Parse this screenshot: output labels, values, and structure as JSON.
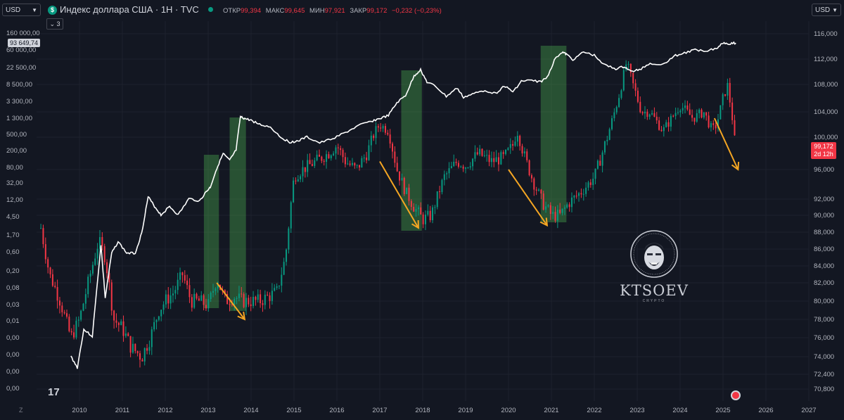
{
  "toolbar": {
    "left_currency": "USD",
    "right_currency": "USD",
    "title": "Индекс доллара США · 1H · TVC",
    "symbol_letter": "$",
    "ohlc": [
      {
        "label": "ОТКР",
        "value": "99,394"
      },
      {
        "label": "МАКС",
        "value": "99,645"
      },
      {
        "label": "МИН",
        "value": "97,921"
      },
      {
        "label": "ЗАКР",
        "value": "99,172"
      },
      {
        "label": "",
        "value": "−0,232 (−0,23%)"
      }
    ],
    "indicators_count": "3"
  },
  "left_price_tag": "93 649,74",
  "price_badge": {
    "price": "99,172",
    "countdown": "2d 12h",
    "color": "#f23645"
  },
  "watermark": {
    "text": "KTSOEV",
    "sub": "CRYPTO"
  },
  "tv_logo": "17",
  "zoom_button": "Z",
  "chart_data": {
    "type": "line",
    "x_ticks": [
      "2010",
      "2011",
      "2012",
      "2013",
      "2014",
      "2015",
      "2016",
      "2017",
      "2018",
      "2019",
      "2020",
      "2021",
      "2022",
      "2023",
      "2024",
      "2025",
      "2026",
      "2027"
    ],
    "left_axis_ticks": [
      "160 000,00",
      "60 000,00",
      "22 500,00",
      "8 500,00",
      "3 300,00",
      "1 300,00",
      "500,00",
      "200,00",
      "80,00",
      "32,00",
      "12,00",
      "4,50",
      "1,70",
      "0,60",
      "0,20",
      "0,08",
      "0,03",
      "0,01",
      "0,00",
      "0,00",
      "0,00",
      "0,00"
    ],
    "right_axis_ticks": [
      "116,000",
      "112,000",
      "108,000",
      "104,000",
      "100,000",
      "96,000",
      "92,000",
      "90,000",
      "88,000",
      "86,000",
      "84,000",
      "82,000",
      "80,000",
      "78,000",
      "76,000",
      "74,000",
      "72,400",
      "70,800"
    ],
    "scale_left": "log",
    "series": [
      {
        "color": "#ffffff",
        "style": "line",
        "x": [
          2009.8,
          2009.95,
          2010.1,
          2010.3,
          2010.5,
          2010.6,
          2010.75,
          2010.9,
          2011.1,
          2011.3,
          2011.45,
          2011.6,
          2011.75,
          2011.9,
          2012.1,
          2012.3,
          2012.55,
          2012.8,
          2012.95,
          2013.05,
          2013.2,
          2013.35,
          2013.5,
          2013.65,
          2013.75,
          2013.85,
          2014.0,
          2014.2,
          2014.45,
          2014.7,
          2014.9,
          2015.1,
          2015.3,
          2015.6,
          2015.9,
          2016.2,
          2016.5,
          2016.8,
          2017.0,
          2017.2,
          2017.4,
          2017.6,
          2017.8,
          2017.95,
          2018.1,
          2018.3,
          2018.55,
          2018.8,
          2018.95,
          2019.2,
          2019.45,
          2019.7,
          2019.9,
          2020.1,
          2020.3,
          2020.5,
          2020.75,
          2020.9,
          2021.1,
          2021.25,
          2021.35,
          2021.5,
          2021.75,
          2022.0,
          2022.25,
          2022.5,
          2022.7,
          2022.85,
          2023.05,
          2023.3,
          2023.6,
          2023.85,
          2024.1,
          2024.35,
          2024.6,
          2024.85,
          2025.0,
          2025.15,
          2025.3
        ],
        "y": [
          0.0006,
          0.0003,
          0.003,
          0.002,
          0.5,
          0.02,
          0.3,
          0.6,
          0.3,
          0.3,
          1,
          9,
          5,
          3,
          5,
          3,
          8,
          7,
          12,
          16,
          50,
          120,
          80,
          150,
          1100,
          1000,
          900,
          700,
          600,
          320,
          240,
          260,
          330,
          230,
          300,
          430,
          650,
          850,
          1000,
          1200,
          2600,
          4000,
          13000,
          19000,
          9000,
          7000,
          3800,
          6300,
          3600,
          4500,
          5500,
          4500,
          7200,
          5000,
          9500,
          10000,
          9200,
          12000,
          40000,
          55000,
          48000,
          35000,
          55000,
          45000,
          25000,
          20000,
          23000,
          17000,
          19000,
          28000,
          26000,
          43000,
          52000,
          63000,
          60000,
          69000,
          97000,
          92000,
          95000
        ]
      },
      {
        "color": "#089981",
        "up_color": "#089981",
        "down_color": "#f23645",
        "style": "candles",
        "x": [
          2009.1,
          2009.3,
          2009.55,
          2009.8,
          2010.0,
          2010.25,
          2010.45,
          2010.6,
          2010.8,
          2011.0,
          2011.2,
          2011.45,
          2011.65,
          2011.85,
          2012.0,
          2012.2,
          2012.4,
          2012.6,
          2012.8,
          2013.0,
          2013.2,
          2013.4,
          2013.6,
          2013.8,
          2014.0,
          2014.2,
          2014.4,
          2014.6,
          2014.8,
          2015.0,
          2015.2,
          2015.5,
          2015.8,
          2016.0,
          2016.2,
          2016.45,
          2016.7,
          2016.9,
          2017.0,
          2017.2,
          2017.4,
          2017.6,
          2017.8,
          2018.0,
          2018.2,
          2018.5,
          2018.8,
          2019.0,
          2019.3,
          2019.6,
          2019.9,
          2020.1,
          2020.2,
          2020.35,
          2020.6,
          2020.8,
          2021.0,
          2021.2,
          2021.4,
          2021.7,
          2022.0,
          2022.3,
          2022.6,
          2022.75,
          2022.9,
          2023.1,
          2023.3,
          2023.6,
          2023.8,
          2024.0,
          2024.3,
          2024.55,
          2024.75,
          2024.85,
          2025.0,
          2025.1,
          2025.2,
          2025.28
        ],
        "y": [
          88.5,
          83,
          80,
          76,
          78,
          83,
          87,
          85,
          78,
          77,
          75,
          74,
          76,
          79,
          80,
          81,
          83,
          80,
          80,
          79.5,
          82.5,
          80,
          80.5,
          80,
          80,
          80,
          80.5,
          81,
          85,
          95,
          96,
          97,
          98,
          99,
          97,
          96,
          98,
          101,
          102,
          101,
          96,
          93,
          91,
          89.5,
          90,
          95,
          97,
          96.5,
          98,
          97,
          97.5,
          99,
          101,
          98,
          94,
          91.5,
          90,
          90,
          91.5,
          93,
          95,
          100,
          107,
          111.5,
          108,
          104,
          104,
          101,
          103,
          105,
          103,
          104,
          101,
          102,
          106,
          108,
          104,
          99
        ]
      }
    ],
    "highlight_bands": [
      [
        2012.9,
        2013.25
      ],
      [
        2013.5,
        2013.88
      ],
      [
        2017.5,
        2017.98
      ],
      [
        2020.75,
        2021.35
      ]
    ],
    "down_arrows": [
      [
        2013.2,
        82,
        2013.85,
        78
      ],
      [
        2017.0,
        97,
        2017.9,
        88.5
      ],
      [
        2020.0,
        96,
        2020.9,
        88.8
      ],
      [
        2024.8,
        103,
        2025.35,
        96
      ]
    ],
    "grid": true
  }
}
